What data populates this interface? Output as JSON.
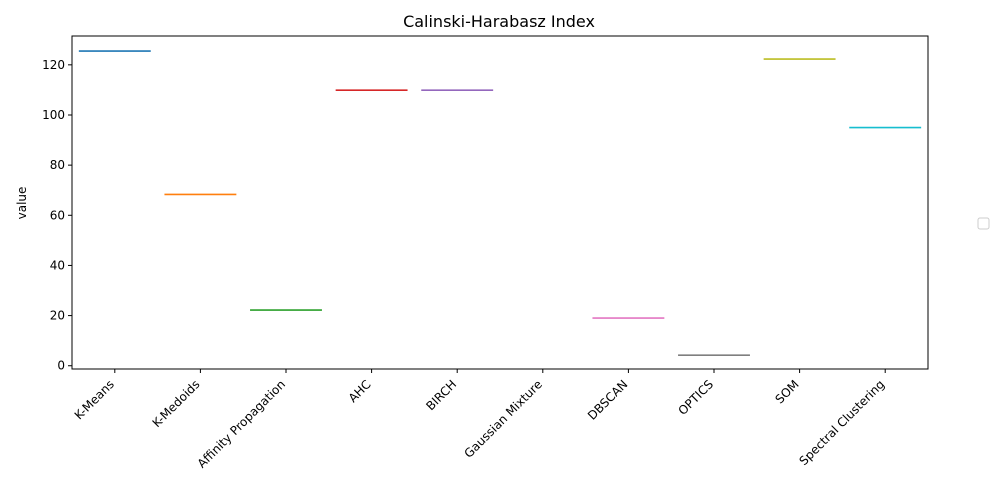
{
  "chart_data": {
    "type": "bar",
    "title": "Calinski-Harabasz Index",
    "xlabel": "",
    "ylabel": "value",
    "categories": [
      "K-Means",
      "K-Medoids",
      "Affinity Propagation",
      "AHC",
      "BIRCH",
      "Gaussian Mixture",
      "DBSCAN",
      "OPTICS",
      "SOM",
      "Spectral Clustering"
    ],
    "values": [
      125.5,
      68.3,
      22.2,
      109.9,
      109.9,
      null,
      19.0,
      4.2,
      122.3,
      95.0
    ],
    "colors": [
      "#1f77b4",
      "#ff7f0e",
      "#2ca02c",
      "#d62728",
      "#9467bd",
      "#8c564b",
      "#e377c2",
      "#7f7f7f",
      "#bcbd22",
      "#17becf"
    ],
    "ylim": [
      -1.3,
      131.5
    ],
    "yticks": [
      0,
      20,
      40,
      60,
      80,
      100,
      120
    ],
    "grid": false,
    "legend": "right (empty)"
  }
}
